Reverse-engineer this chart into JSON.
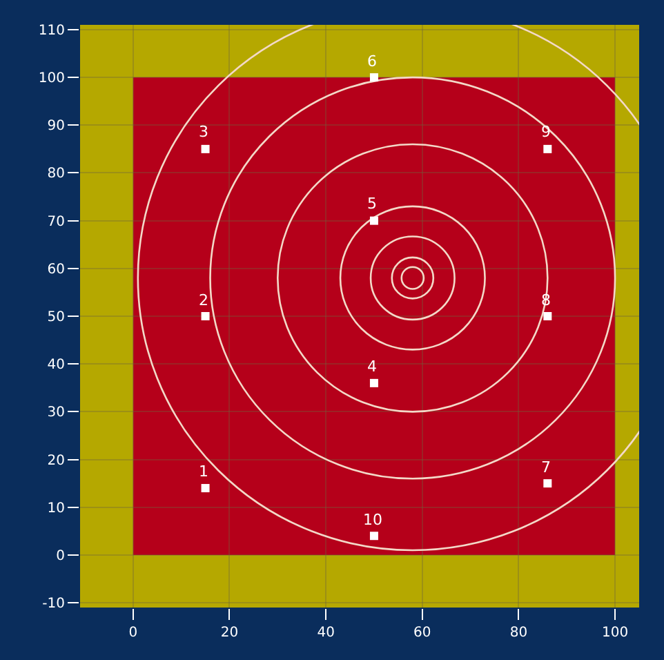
{
  "chart_data": {
    "type": "scatter",
    "x": [
      15,
      15,
      15,
      50,
      50,
      50,
      86,
      86,
      86,
      50
    ],
    "series": [
      {
        "color": "#ffffff",
        "values": [
          14,
          50,
          85,
          36,
          70,
          100,
          15,
          50,
          85,
          4
        ]
      }
    ],
    "annotations": [
      {
        "text": "1",
        "x": 15,
        "y": 14
      },
      {
        "text": "2",
        "x": 15,
        "y": 50
      },
      {
        "text": "3",
        "x": 15,
        "y": 85
      },
      {
        "text": "4",
        "x": 50,
        "y": 36
      },
      {
        "text": "5",
        "x": 50,
        "y": 70
      },
      {
        "text": "6",
        "x": 50,
        "y": 100
      },
      {
        "text": "7",
        "x": 86,
        "y": 15
      },
      {
        "text": "8",
        "x": 86,
        "y": 50
      },
      {
        "text": "9",
        "x": 86,
        "y": 85
      },
      {
        "text": "10",
        "x": 50,
        "y": 4
      }
    ],
    "xlim": [
      -11,
      105
    ],
    "xticks": [
      0,
      20,
      40,
      60,
      80,
      100
    ],
    "ylim": [
      -11,
      111
    ],
    "yticks": [
      -10,
      0,
      10,
      20,
      30,
      40,
      50,
      60,
      70,
      80,
      90,
      100,
      110
    ],
    "bands": [
      {
        "axis": "x",
        "from": -11,
        "to": 0,
        "color": "#b5a800"
      },
      {
        "axis": "x",
        "from": 100,
        "to": 105,
        "color": "#b5a800"
      },
      {
        "axis": "y",
        "from": -11,
        "to": 0,
        "color": "#b5a800"
      },
      {
        "axis": "y",
        "from": 100,
        "to": 111,
        "color": "#b5a800"
      }
    ],
    "grid": true,
    "marker": "square"
  }
}
